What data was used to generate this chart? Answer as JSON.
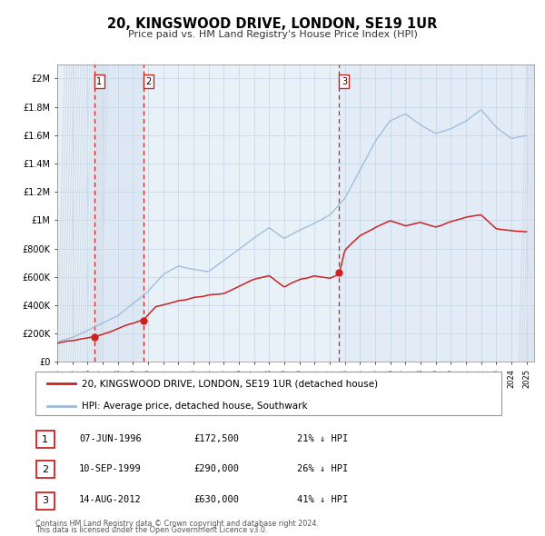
{
  "title": "20, KINGSWOOD DRIVE, LONDON, SE19 1UR",
  "subtitle": "Price paid vs. HM Land Registry's House Price Index (HPI)",
  "xlim": [
    1994.0,
    2025.5
  ],
  "ylim": [
    0,
    2100000
  ],
  "yticks": [
    0,
    200000,
    400000,
    600000,
    800000,
    1000000,
    1200000,
    1400000,
    1600000,
    1800000,
    2000000
  ],
  "ytick_labels": [
    "£0",
    "£200K",
    "£400K",
    "£600K",
    "£800K",
    "£1M",
    "£1.2M",
    "£1.4M",
    "£1.6M",
    "£1.8M",
    "£2M"
  ],
  "xtick_years": [
    1994,
    1995,
    1996,
    1997,
    1998,
    1999,
    2000,
    2001,
    2002,
    2003,
    2004,
    2005,
    2006,
    2007,
    2008,
    2009,
    2010,
    2011,
    2012,
    2013,
    2014,
    2015,
    2016,
    2017,
    2018,
    2019,
    2020,
    2021,
    2022,
    2023,
    2024,
    2025
  ],
  "sale_color": "#cc2222",
  "hpi_color": "#99bbdd",
  "vline_color": "#cc2222",
  "grid_color": "#c8d8e8",
  "bg_color": "#e8f0f8",
  "plot_bg": "#ffffff",
  "hatch_color": "#d0dce8",
  "shade_color": "#dde8f4",
  "sale1_year": 1996.44,
  "sale2_year": 1999.7,
  "sale3_year": 2012.62,
  "sale1_price": 172500,
  "sale2_price": 290000,
  "sale3_price": 630000,
  "legend_sale_label": "20, KINGSWOOD DRIVE, LONDON, SE19 1UR (detached house)",
  "legend_hpi_label": "HPI: Average price, detached house, Southwark",
  "table_rows": [
    {
      "num": "1",
      "date": "07-JUN-1996",
      "price": "£172,500",
      "hpi": "21% ↓ HPI"
    },
    {
      "num": "2",
      "date": "10-SEP-1999",
      "price": "£290,000",
      "hpi": "26% ↓ HPI"
    },
    {
      "num": "3",
      "date": "14-AUG-2012",
      "price": "£630,000",
      "hpi": "41% ↓ HPI"
    }
  ],
  "footnote1": "Contains HM Land Registry data © Crown copyright and database right 2024.",
  "footnote2": "This data is licensed under the Open Government Licence v3.0."
}
